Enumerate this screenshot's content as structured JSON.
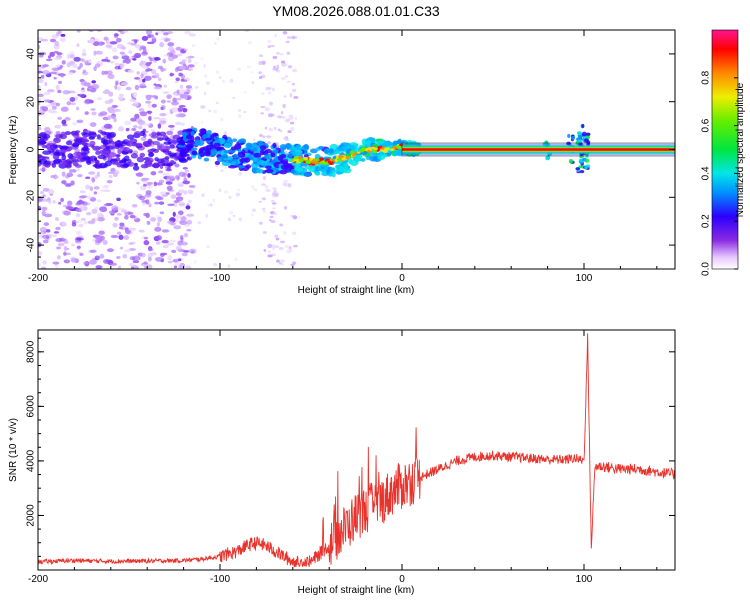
{
  "title": "YM08.2026.088.01.01.C33",
  "chart_data": [
    {
      "type": "heatmap",
      "name": "spectrogram",
      "xlabel": "Height of straight line (km)",
      "ylabel": "Frequency (Hz)",
      "xlim": [
        -200,
        150
      ],
      "ylim": [
        -50,
        50
      ],
      "xticks": [
        -200,
        -100,
        0,
        100
      ],
      "yticks": [
        -40,
        -20,
        0,
        20,
        40
      ],
      "colorbar": {
        "label": "Normalized spectral amplitude",
        "range": [
          0,
          1
        ],
        "ticks": [
          "0.0",
          "0.2",
          "0.4",
          "0.6",
          "0.8"
        ],
        "tick_values": [
          0,
          0.2,
          0.4,
          0.6,
          0.8
        ]
      },
      "ridge": [
        {
          "x": -120,
          "y": 3
        },
        {
          "x": -110,
          "y": 2
        },
        {
          "x": -100,
          "y": 0
        },
        {
          "x": -90,
          "y": -2
        },
        {
          "x": -80,
          "y": -3
        },
        {
          "x": -70,
          "y": -4
        },
        {
          "x": -60,
          "y": -4
        },
        {
          "x": -50,
          "y": -5
        },
        {
          "x": -40,
          "y": -5
        },
        {
          "x": -30,
          "y": -3
        },
        {
          "x": -20,
          "y": 0
        },
        {
          "x": -10,
          "y": 0
        },
        {
          "x": 0,
          "y": 1
        },
        {
          "x": 10,
          "y": 0
        },
        {
          "x": 50,
          "y": 0
        },
        {
          "x": 100,
          "y": 0
        },
        {
          "x": 150,
          "y": 0
        }
      ]
    },
    {
      "type": "line",
      "name": "snr",
      "xlabel": "Height of straight line (km)",
      "ylabel": "SNR (10 * v/v)",
      "xlim": [
        -200,
        150
      ],
      "ylim": [
        0,
        8800
      ],
      "xticks": [
        -200,
        -100,
        0,
        100
      ],
      "yticks": [
        2000,
        4000,
        6000,
        8000
      ],
      "color": "#e8332c",
      "series": [
        {
          "name": "SNR",
          "x": [
            -200,
            -180,
            -160,
            -140,
            -120,
            -110,
            -100,
            -90,
            -85,
            -80,
            -75,
            -70,
            -65,
            -60,
            -55,
            -50,
            -45,
            -40,
            -35,
            -30,
            -25,
            -20,
            -15,
            -10,
            -5,
            0,
            10,
            20,
            30,
            40,
            50,
            60,
            70,
            80,
            90,
            95,
            100,
            102,
            104,
            106,
            110,
            120,
            130,
            140,
            150
          ],
          "y": [
            300,
            350,
            320,
            330,
            350,
            400,
            500,
            700,
            900,
            1000,
            900,
            700,
            500,
            300,
            250,
            300,
            600,
            900,
            1300,
            1600,
            2000,
            2200,
            2400,
            2600,
            2900,
            3100,
            3400,
            3700,
            4000,
            4150,
            4200,
            4150,
            4100,
            4050,
            4050,
            4100,
            4000,
            8500,
            800,
            3800,
            3800,
            3700,
            3700,
            3600,
            3500
          ]
        }
      ]
    }
  ]
}
